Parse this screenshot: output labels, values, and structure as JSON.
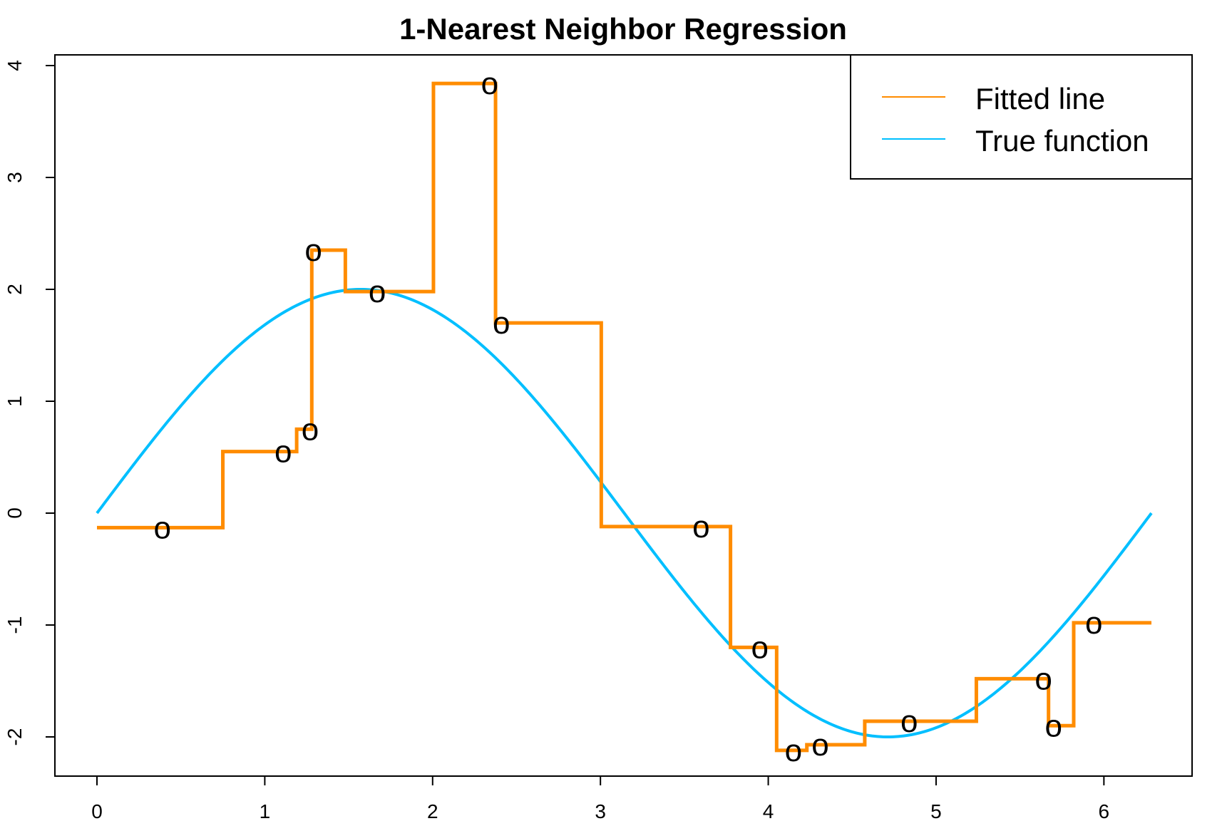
{
  "chart_data": {
    "type": "line",
    "title": "1-Nearest Neighbor Regression",
    "xlabel": "",
    "ylabel": "",
    "xlim": [
      0,
      6.2832
    ],
    "ylim": [
      -2.3,
      4.1
    ],
    "x_ticks": [
      0,
      1,
      2,
      3,
      4,
      5,
      6
    ],
    "y_ticks": [
      -2,
      -1,
      0,
      1,
      2,
      3,
      4
    ],
    "grid": false,
    "legend_position": "top-right",
    "point_marker": "o",
    "colors": {
      "fitted": "#FF8C00",
      "true_function": "#00BFFF",
      "points": "#000000"
    },
    "series": [
      {
        "name": "Fitted line",
        "kind": "step",
        "x": [
          0.39,
          1.11,
          1.27,
          1.29,
          1.67,
          2.34,
          2.41,
          3.6,
          3.95,
          4.15,
          4.31,
          4.84,
          5.64,
          5.7,
          5.94
        ],
        "y": [
          -0.13,
          0.55,
          0.75,
          2.35,
          1.98,
          3.84,
          1.7,
          -0.12,
          -1.2,
          -2.12,
          -2.07,
          -1.86,
          -1.48,
          -1.9,
          -0.98
        ]
      },
      {
        "name": "True function",
        "kind": "function",
        "formula": "2*sin(x)",
        "domain": [
          0,
          6.2832
        ]
      },
      {
        "name": "",
        "kind": "points",
        "x": [
          0.39,
          1.11,
          1.27,
          1.29,
          1.67,
          2.34,
          2.41,
          3.6,
          3.95,
          4.15,
          4.31,
          4.84,
          5.64,
          5.7,
          5.94
        ],
        "y": [
          -0.13,
          0.55,
          0.75,
          2.35,
          1.98,
          3.84,
          1.7,
          -0.12,
          -1.2,
          -2.12,
          -2.07,
          -1.86,
          -1.48,
          -1.9,
          -0.98
        ]
      }
    ],
    "legend": [
      {
        "label": "Fitted line",
        "color": "#FF8C00"
      },
      {
        "label": "True function",
        "color": "#00BFFF"
      }
    ]
  }
}
